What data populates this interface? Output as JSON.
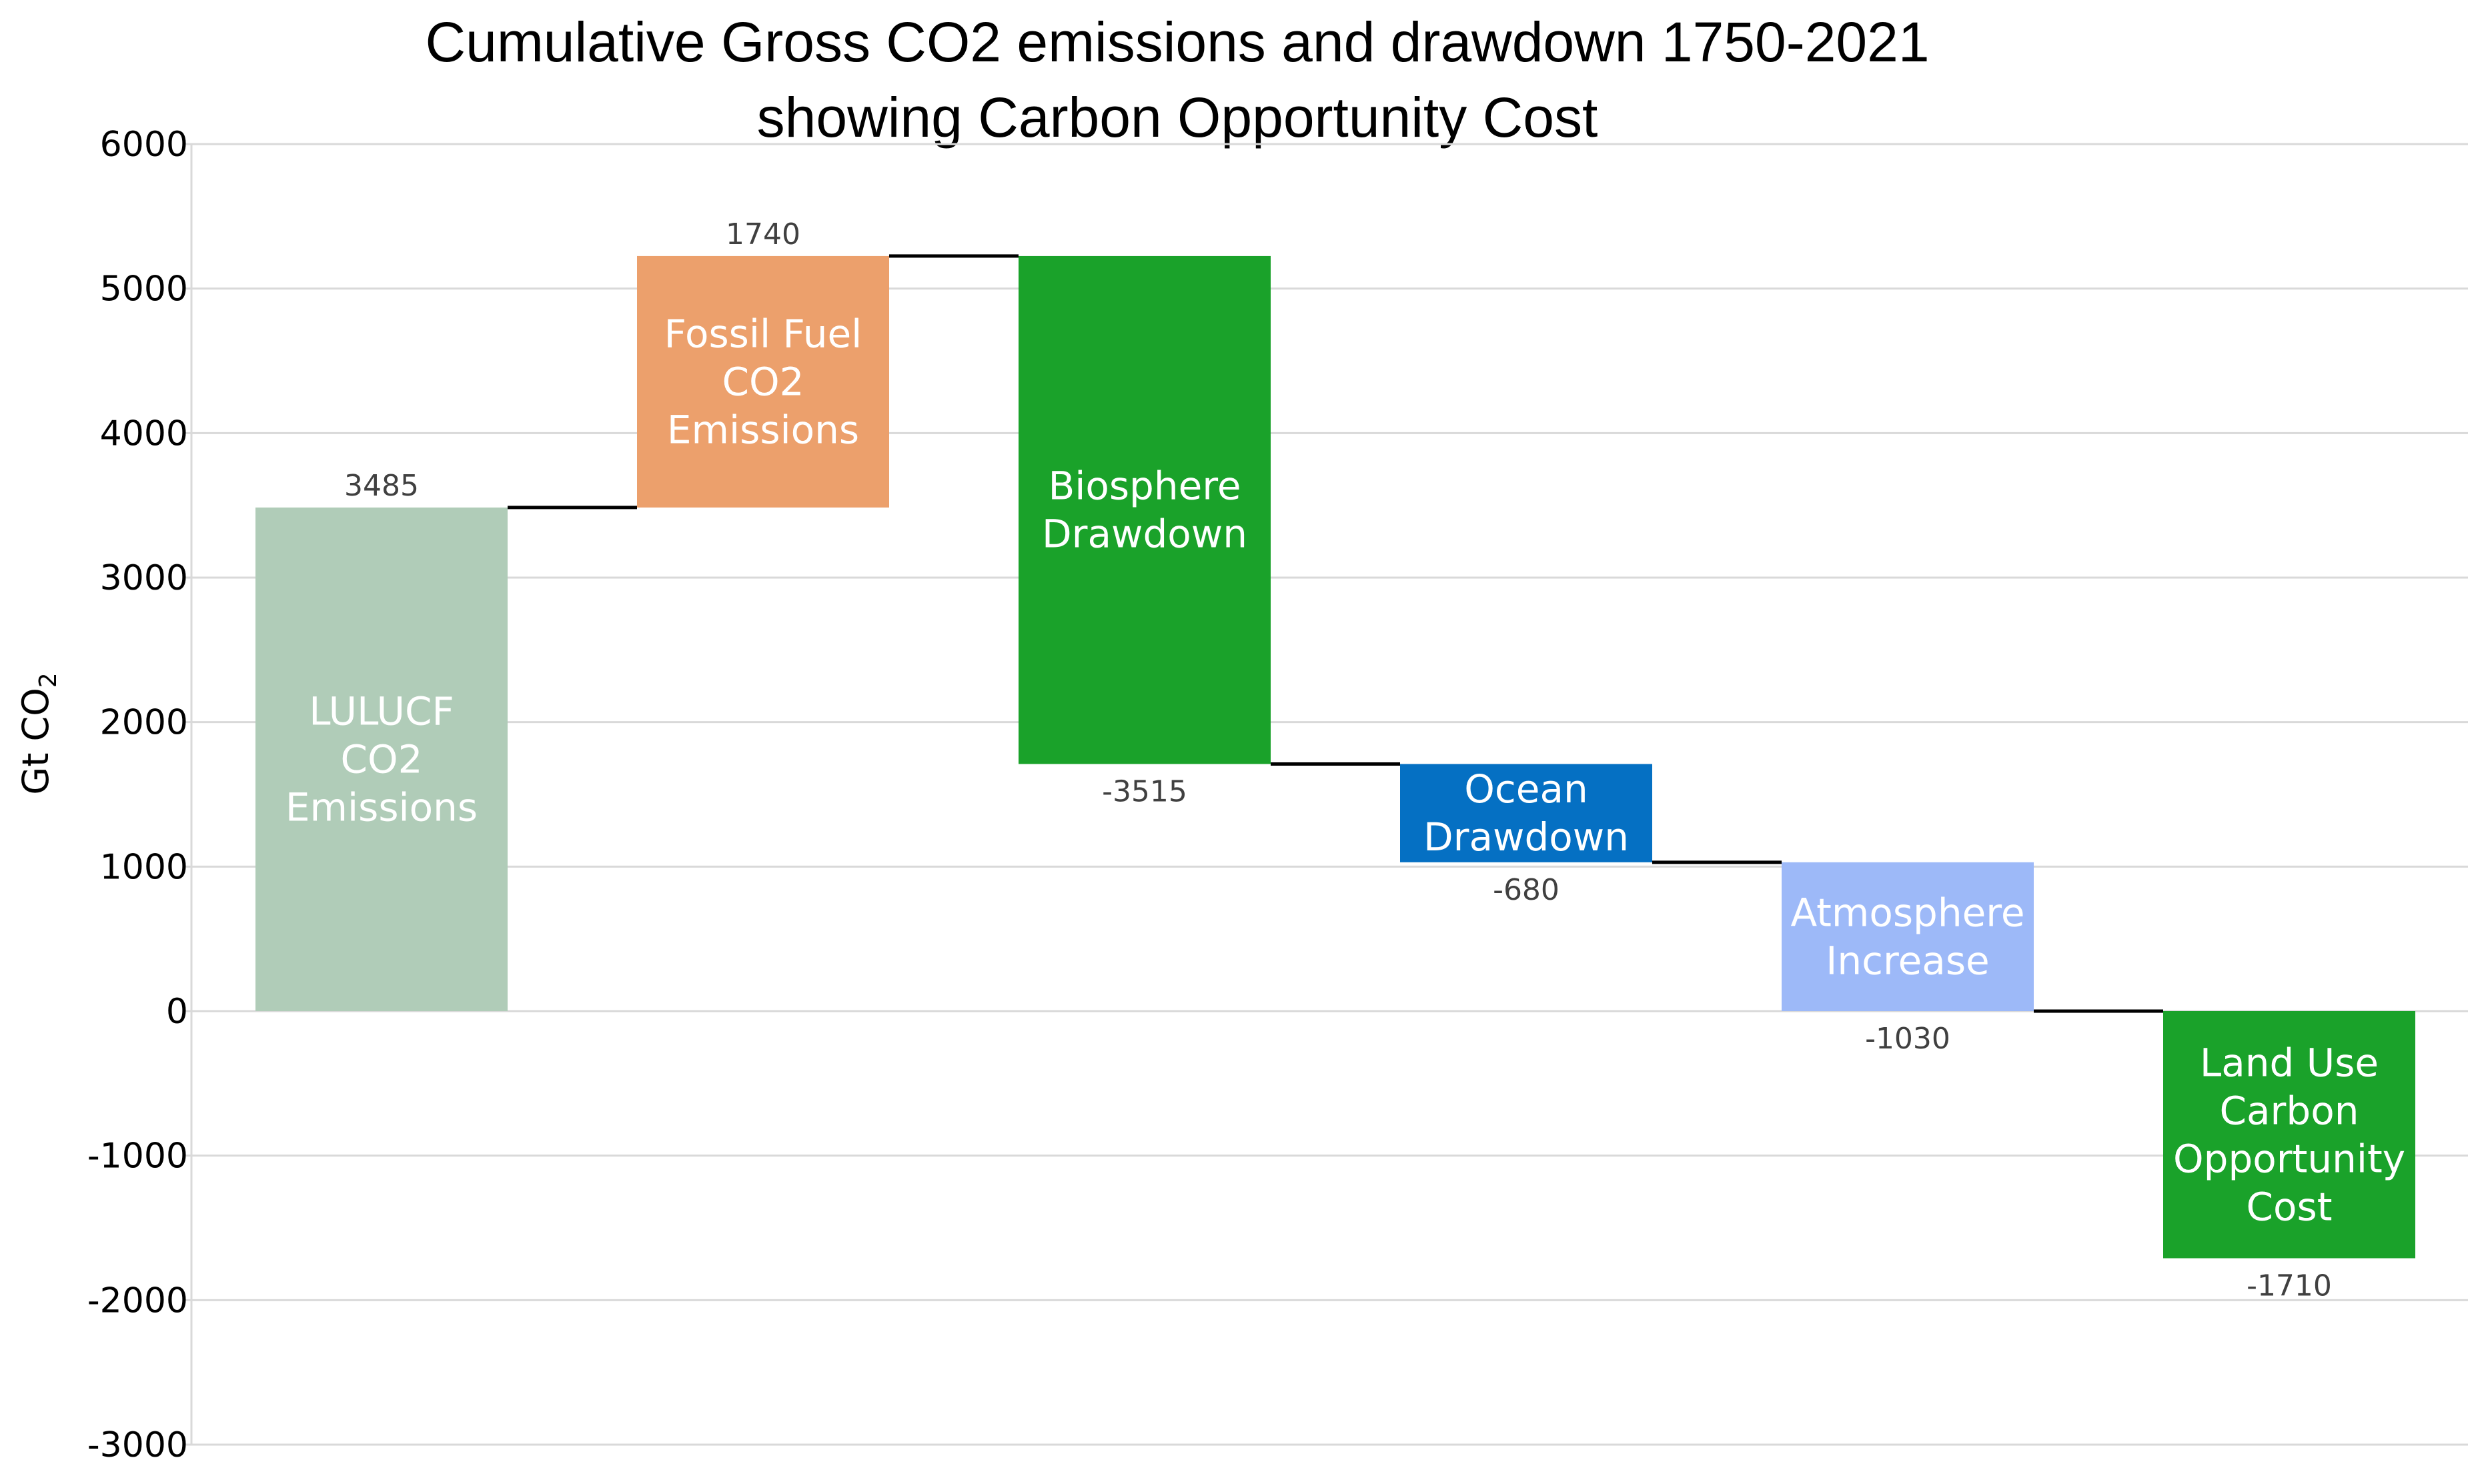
{
  "chart_data": {
    "type": "waterfall",
    "title": "Cumulative Gross CO2 emissions and drawdown 1750-2021 showing Carbon Opportunity Cost",
    "title_lines": [
      "Cumulative Gross CO2 emissions and drawdown 1750-2021",
      "showing Carbon Opportunity Cost"
    ],
    "ylabel": "Gt CO",
    "ylabel_subscript": "2",
    "ylim": [
      -3000,
      6000
    ],
    "yticks": [
      6000,
      5000,
      4000,
      3000,
      2000,
      1000,
      0,
      -1000,
      -2000,
      -3000
    ],
    "ytick_labels": [
      "6000",
      "5000",
      "4000",
      "3000",
      "2000",
      "1000",
      "0",
      "-1000",
      "-2000",
      "-3000"
    ],
    "grid": true,
    "steps": [
      {
        "name": "LULUCF CO2 Emissions",
        "label_lines": [
          "LULUCF",
          "CO2",
          "Emissions"
        ],
        "value": 3485,
        "value_label": "3485",
        "color": "#b0ccb8"
      },
      {
        "name": "Fossil Fuel CO2 Emissions",
        "label_lines": [
          "Fossil Fuel",
          "CO2",
          "Emissions"
        ],
        "value": 1740,
        "value_label": "1740",
        "color": "#eca06c"
      },
      {
        "name": "Biosphere Drawdown",
        "label_lines": [
          "Biosphere",
          "Drawdown"
        ],
        "value": -3515,
        "value_label": "-3515",
        "color": "#1aa22a"
      },
      {
        "name": "Ocean Drawdown",
        "label_lines": [
          "Ocean",
          "Drawdown"
        ],
        "value": -680,
        "value_label": "-680",
        "color": "#0570c3"
      },
      {
        "name": "Atmosphere Increase",
        "label_lines": [
          "Atmosphere",
          "Increase"
        ],
        "value": -1030,
        "value_label": "-1030",
        "color": "#9db9f8"
      },
      {
        "name": "Land Use Carbon Opportunity Cost",
        "label_lines": [
          "Land Use",
          "Carbon",
          "Opportunity",
          "Cost"
        ],
        "value": -1710,
        "value_label": "-1710",
        "color": "#1aa22a"
      }
    ]
  }
}
